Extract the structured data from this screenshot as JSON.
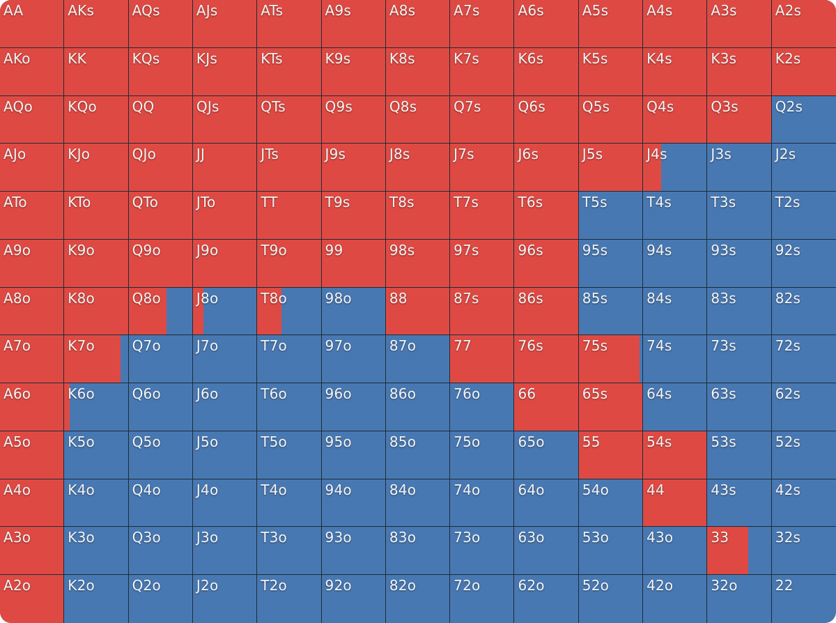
{
  "colors": {
    "raise": "#de4a43",
    "fold": "#4878b2",
    "grid_line": "#1e2a36",
    "label": "#f4f4f4"
  },
  "cells": [
    {
      "hand": "AA",
      "raise": 1
    },
    {
      "hand": "AKs",
      "raise": 1
    },
    {
      "hand": "AQs",
      "raise": 1
    },
    {
      "hand": "AJs",
      "raise": 1
    },
    {
      "hand": "ATs",
      "raise": 1
    },
    {
      "hand": "A9s",
      "raise": 1
    },
    {
      "hand": "A8s",
      "raise": 1
    },
    {
      "hand": "A7s",
      "raise": 1
    },
    {
      "hand": "A6s",
      "raise": 1
    },
    {
      "hand": "A5s",
      "raise": 1
    },
    {
      "hand": "A4s",
      "raise": 1
    },
    {
      "hand": "A3s",
      "raise": 1
    },
    {
      "hand": "A2s",
      "raise": 1
    },
    {
      "hand": "AKo",
      "raise": 1
    },
    {
      "hand": "KK",
      "raise": 1
    },
    {
      "hand": "KQs",
      "raise": 1
    },
    {
      "hand": "KJs",
      "raise": 1
    },
    {
      "hand": "KTs",
      "raise": 1
    },
    {
      "hand": "K9s",
      "raise": 1
    },
    {
      "hand": "K8s",
      "raise": 1
    },
    {
      "hand": "K7s",
      "raise": 1
    },
    {
      "hand": "K6s",
      "raise": 1
    },
    {
      "hand": "K5s",
      "raise": 1
    },
    {
      "hand": "K4s",
      "raise": 1
    },
    {
      "hand": "K3s",
      "raise": 1
    },
    {
      "hand": "K2s",
      "raise": 1
    },
    {
      "hand": "AQo",
      "raise": 1
    },
    {
      "hand": "KQo",
      "raise": 1
    },
    {
      "hand": "QQ",
      "raise": 1
    },
    {
      "hand": "QJs",
      "raise": 1
    },
    {
      "hand": "QTs",
      "raise": 1
    },
    {
      "hand": "Q9s",
      "raise": 1
    },
    {
      "hand": "Q8s",
      "raise": 1
    },
    {
      "hand": "Q7s",
      "raise": 1
    },
    {
      "hand": "Q6s",
      "raise": 1
    },
    {
      "hand": "Q5s",
      "raise": 1
    },
    {
      "hand": "Q4s",
      "raise": 1
    },
    {
      "hand": "Q3s",
      "raise": 1
    },
    {
      "hand": "Q2s",
      "raise": 0
    },
    {
      "hand": "AJo",
      "raise": 1
    },
    {
      "hand": "KJo",
      "raise": 1
    },
    {
      "hand": "QJo",
      "raise": 1
    },
    {
      "hand": "JJ",
      "raise": 1
    },
    {
      "hand": "JTs",
      "raise": 1
    },
    {
      "hand": "J9s",
      "raise": 1
    },
    {
      "hand": "J8s",
      "raise": 1
    },
    {
      "hand": "J7s",
      "raise": 1
    },
    {
      "hand": "J6s",
      "raise": 1
    },
    {
      "hand": "J5s",
      "raise": 1
    },
    {
      "hand": "J4s",
      "raise": 0.28
    },
    {
      "hand": "J3s",
      "raise": 0
    },
    {
      "hand": "J2s",
      "raise": 0
    },
    {
      "hand": "ATo",
      "raise": 1
    },
    {
      "hand": "KTo",
      "raise": 1
    },
    {
      "hand": "QTo",
      "raise": 1
    },
    {
      "hand": "JTo",
      "raise": 1
    },
    {
      "hand": "TT",
      "raise": 1
    },
    {
      "hand": "T9s",
      "raise": 1
    },
    {
      "hand": "T8s",
      "raise": 1
    },
    {
      "hand": "T7s",
      "raise": 1
    },
    {
      "hand": "T6s",
      "raise": 1
    },
    {
      "hand": "T5s",
      "raise": 0
    },
    {
      "hand": "T4s",
      "raise": 0
    },
    {
      "hand": "T3s",
      "raise": 0
    },
    {
      "hand": "T2s",
      "raise": 0
    },
    {
      "hand": "A9o",
      "raise": 1
    },
    {
      "hand": "K9o",
      "raise": 1
    },
    {
      "hand": "Q9o",
      "raise": 1
    },
    {
      "hand": "J9o",
      "raise": 1
    },
    {
      "hand": "T9o",
      "raise": 1
    },
    {
      "hand": "99",
      "raise": 1
    },
    {
      "hand": "98s",
      "raise": 1
    },
    {
      "hand": "97s",
      "raise": 1
    },
    {
      "hand": "96s",
      "raise": 1
    },
    {
      "hand": "95s",
      "raise": 0
    },
    {
      "hand": "94s",
      "raise": 0
    },
    {
      "hand": "93s",
      "raise": 0
    },
    {
      "hand": "92s",
      "raise": 0
    },
    {
      "hand": "A8o",
      "raise": 1
    },
    {
      "hand": "K8o",
      "raise": 1
    },
    {
      "hand": "Q8o",
      "raise": 0.6
    },
    {
      "hand": "J8o",
      "raise": 0.16
    },
    {
      "hand": "T8o",
      "raise": 0.38
    },
    {
      "hand": "98o",
      "raise": 0
    },
    {
      "hand": "88",
      "raise": 1
    },
    {
      "hand": "87s",
      "raise": 1
    },
    {
      "hand": "86s",
      "raise": 1
    },
    {
      "hand": "85s",
      "raise": 0
    },
    {
      "hand": "84s",
      "raise": 0
    },
    {
      "hand": "83s",
      "raise": 0
    },
    {
      "hand": "82s",
      "raise": 0
    },
    {
      "hand": "A7o",
      "raise": 1
    },
    {
      "hand": "K7o",
      "raise": 0.88
    },
    {
      "hand": "Q7o",
      "raise": 0
    },
    {
      "hand": "J7o",
      "raise": 0
    },
    {
      "hand": "T7o",
      "raise": 0
    },
    {
      "hand": "97o",
      "raise": 0
    },
    {
      "hand": "87o",
      "raise": 0
    },
    {
      "hand": "77",
      "raise": 1
    },
    {
      "hand": "76s",
      "raise": 1
    },
    {
      "hand": "75s",
      "raise": 0.96
    },
    {
      "hand": "74s",
      "raise": 0
    },
    {
      "hand": "73s",
      "raise": 0
    },
    {
      "hand": "72s",
      "raise": 0
    },
    {
      "hand": "A6o",
      "raise": 1
    },
    {
      "hand": "K6o",
      "raise": 0.08
    },
    {
      "hand": "Q6o",
      "raise": 0
    },
    {
      "hand": "J6o",
      "raise": 0
    },
    {
      "hand": "T6o",
      "raise": 0
    },
    {
      "hand": "96o",
      "raise": 0
    },
    {
      "hand": "86o",
      "raise": 0
    },
    {
      "hand": "76o",
      "raise": 0
    },
    {
      "hand": "66",
      "raise": 1
    },
    {
      "hand": "65s",
      "raise": 1
    },
    {
      "hand": "64s",
      "raise": 0
    },
    {
      "hand": "63s",
      "raise": 0
    },
    {
      "hand": "62s",
      "raise": 0
    },
    {
      "hand": "A5o",
      "raise": 1
    },
    {
      "hand": "K5o",
      "raise": 0
    },
    {
      "hand": "Q5o",
      "raise": 0
    },
    {
      "hand": "J5o",
      "raise": 0
    },
    {
      "hand": "T5o",
      "raise": 0
    },
    {
      "hand": "95o",
      "raise": 0
    },
    {
      "hand": "85o",
      "raise": 0
    },
    {
      "hand": "75o",
      "raise": 0
    },
    {
      "hand": "65o",
      "raise": 0
    },
    {
      "hand": "55",
      "raise": 1
    },
    {
      "hand": "54s",
      "raise": 1
    },
    {
      "hand": "53s",
      "raise": 0
    },
    {
      "hand": "52s",
      "raise": 0
    },
    {
      "hand": "A4o",
      "raise": 1
    },
    {
      "hand": "K4o",
      "raise": 0
    },
    {
      "hand": "Q4o",
      "raise": 0
    },
    {
      "hand": "J4o",
      "raise": 0
    },
    {
      "hand": "T4o",
      "raise": 0
    },
    {
      "hand": "94o",
      "raise": 0
    },
    {
      "hand": "84o",
      "raise": 0
    },
    {
      "hand": "74o",
      "raise": 0
    },
    {
      "hand": "64o",
      "raise": 0
    },
    {
      "hand": "54o",
      "raise": 0
    },
    {
      "hand": "44",
      "raise": 1
    },
    {
      "hand": "43s",
      "raise": 0
    },
    {
      "hand": "42s",
      "raise": 0
    },
    {
      "hand": "A3o",
      "raise": 1
    },
    {
      "hand": "K3o",
      "raise": 0
    },
    {
      "hand": "Q3o",
      "raise": 0
    },
    {
      "hand": "J3o",
      "raise": 0
    },
    {
      "hand": "T3o",
      "raise": 0
    },
    {
      "hand": "93o",
      "raise": 0
    },
    {
      "hand": "83o",
      "raise": 0
    },
    {
      "hand": "73o",
      "raise": 0
    },
    {
      "hand": "63o",
      "raise": 0
    },
    {
      "hand": "53o",
      "raise": 0
    },
    {
      "hand": "43o",
      "raise": 0
    },
    {
      "hand": "33",
      "raise": 0.64
    },
    {
      "hand": "32s",
      "raise": 0
    },
    {
      "hand": "A2o",
      "raise": 1
    },
    {
      "hand": "K2o",
      "raise": 0
    },
    {
      "hand": "Q2o",
      "raise": 0
    },
    {
      "hand": "J2o",
      "raise": 0
    },
    {
      "hand": "T2o",
      "raise": 0
    },
    {
      "hand": "92o",
      "raise": 0
    },
    {
      "hand": "82o",
      "raise": 0
    },
    {
      "hand": "72o",
      "raise": 0
    },
    {
      "hand": "62o",
      "raise": 0
    },
    {
      "hand": "52o",
      "raise": 0
    },
    {
      "hand": "42o",
      "raise": 0
    },
    {
      "hand": "32o",
      "raise": 0
    },
    {
      "hand": "22",
      "raise": 0
    }
  ]
}
